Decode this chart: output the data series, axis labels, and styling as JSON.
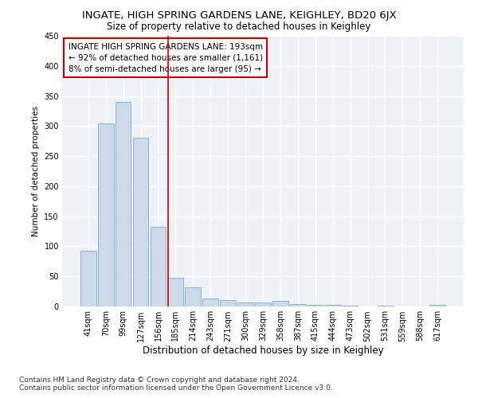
{
  "title": "INGATE, HIGH SPRING GARDENS LANE, KEIGHLEY, BD20 6JX",
  "subtitle": "Size of property relative to detached houses in Keighley",
  "xlabel": "Distribution of detached houses by size in Keighley",
  "ylabel": "Number of detached properties",
  "bar_color": "#ccd9e8",
  "bar_edge_color": "#7aaacf",
  "annotation_text_line1": "INGATE HIGH SPRING GARDENS LANE: 193sqm",
  "annotation_text_line2": "← 92% of detached houses are smaller (1,161)",
  "annotation_text_line3": "8% of semi-detached houses are larger (95) →",
  "annotation_box_color": "#ffffff",
  "annotation_box_edge": "#cc0000",
  "vline_color": "#cc0000",
  "categories": [
    "41sqm",
    "70sqm",
    "99sqm",
    "127sqm",
    "156sqm",
    "185sqm",
    "214sqm",
    "243sqm",
    "271sqm",
    "300sqm",
    "329sqm",
    "358sqm",
    "387sqm",
    "415sqm",
    "444sqm",
    "473sqm",
    "502sqm",
    "531sqm",
    "559sqm",
    "588sqm",
    "617sqm"
  ],
  "values": [
    93,
    305,
    340,
    280,
    132,
    47,
    32,
    13,
    10,
    6,
    6,
    9,
    4,
    3,
    3,
    1,
    0,
    1,
    0,
    0,
    2
  ],
  "vline_index": 5,
  "ylim": [
    0,
    450
  ],
  "yticks": [
    0,
    50,
    100,
    150,
    200,
    250,
    300,
    350,
    400,
    450
  ],
  "footer_line1": "Contains HM Land Registry data © Crown copyright and database right 2024.",
  "footer_line2": "Contains public sector information licensed under the Open Government Licence v3.0.",
  "background_color": "#ffffff",
  "plot_background": "#eef2f7",
  "grid_color": "#ffffff",
  "title_fontsize": 9.5,
  "subtitle_fontsize": 8.5,
  "xlabel_fontsize": 8.5,
  "ylabel_fontsize": 7.5,
  "tick_fontsize": 7,
  "ann_fontsize": 7.5,
  "footer_fontsize": 6.5
}
